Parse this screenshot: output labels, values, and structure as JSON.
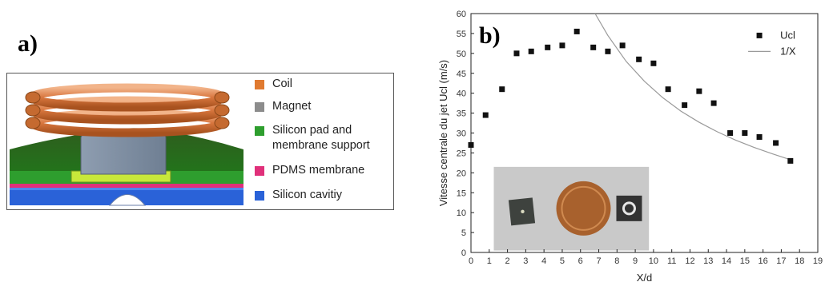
{
  "panel_a": {
    "label": "a)",
    "legend": [
      {
        "label": "Coil",
        "color": "#e07a30"
      },
      {
        "label": "Magnet",
        "color": "#8c8c8c"
      },
      {
        "label": "Silicon pad and membrane support",
        "color": "#2e9e2e"
      },
      {
        "label": "PDMS membrane",
        "color": "#e0307a"
      },
      {
        "label": "Silicon cavitiy",
        "color": "#2a62d8"
      }
    ]
  },
  "panel_b": {
    "label": "b)"
  },
  "chart_data": {
    "type": "scatter",
    "xlabel": "X/d",
    "ylabel": "Vitesse centrale du jet Ucl (m/s)",
    "xlim": [
      0,
      19
    ],
    "ylim": [
      0,
      60
    ],
    "x_ticks": [
      0,
      1,
      2,
      3,
      4,
      5,
      6,
      7,
      8,
      9,
      10,
      11,
      12,
      13,
      14,
      15,
      16,
      17,
      18,
      19
    ],
    "y_ticks": [
      0,
      5,
      10,
      15,
      20,
      25,
      30,
      35,
      40,
      45,
      50,
      55,
      60
    ],
    "legend_position": "top-right",
    "grid": false,
    "series": [
      {
        "name": "Ucl",
        "marker": "square",
        "color": "#111111",
        "x": [
          0,
          0.8,
          1.7,
          2.5,
          3.3,
          4.2,
          5.0,
          5.8,
          6.7,
          7.5,
          8.3,
          9.2,
          10.0,
          10.8,
          11.7,
          12.5,
          13.3,
          14.2,
          15.0,
          15.8,
          16.7,
          17.5
        ],
        "y": [
          27,
          34.5,
          41,
          50,
          50.5,
          51.5,
          52,
          55.5,
          51.5,
          50.5,
          52,
          48.5,
          47.5,
          41,
          37,
          40.5,
          37.5,
          30,
          30,
          29,
          27.5,
          23
        ]
      },
      {
        "name": "1/X",
        "type": "line",
        "color": "#9a9a9a",
        "x": [
          6.8,
          7.5,
          8.5,
          9.5,
          10.5,
          11.5,
          12.5,
          13.5,
          14.5,
          15.5,
          16.5,
          17.5
        ],
        "y": [
          60,
          54.5,
          48,
          43,
          38.9,
          35.5,
          32.7,
          30.3,
          28.2,
          26.4,
          24.8,
          23.3
        ]
      }
    ],
    "inset_photo": "photo of silicon chip, coin and ring device"
  }
}
